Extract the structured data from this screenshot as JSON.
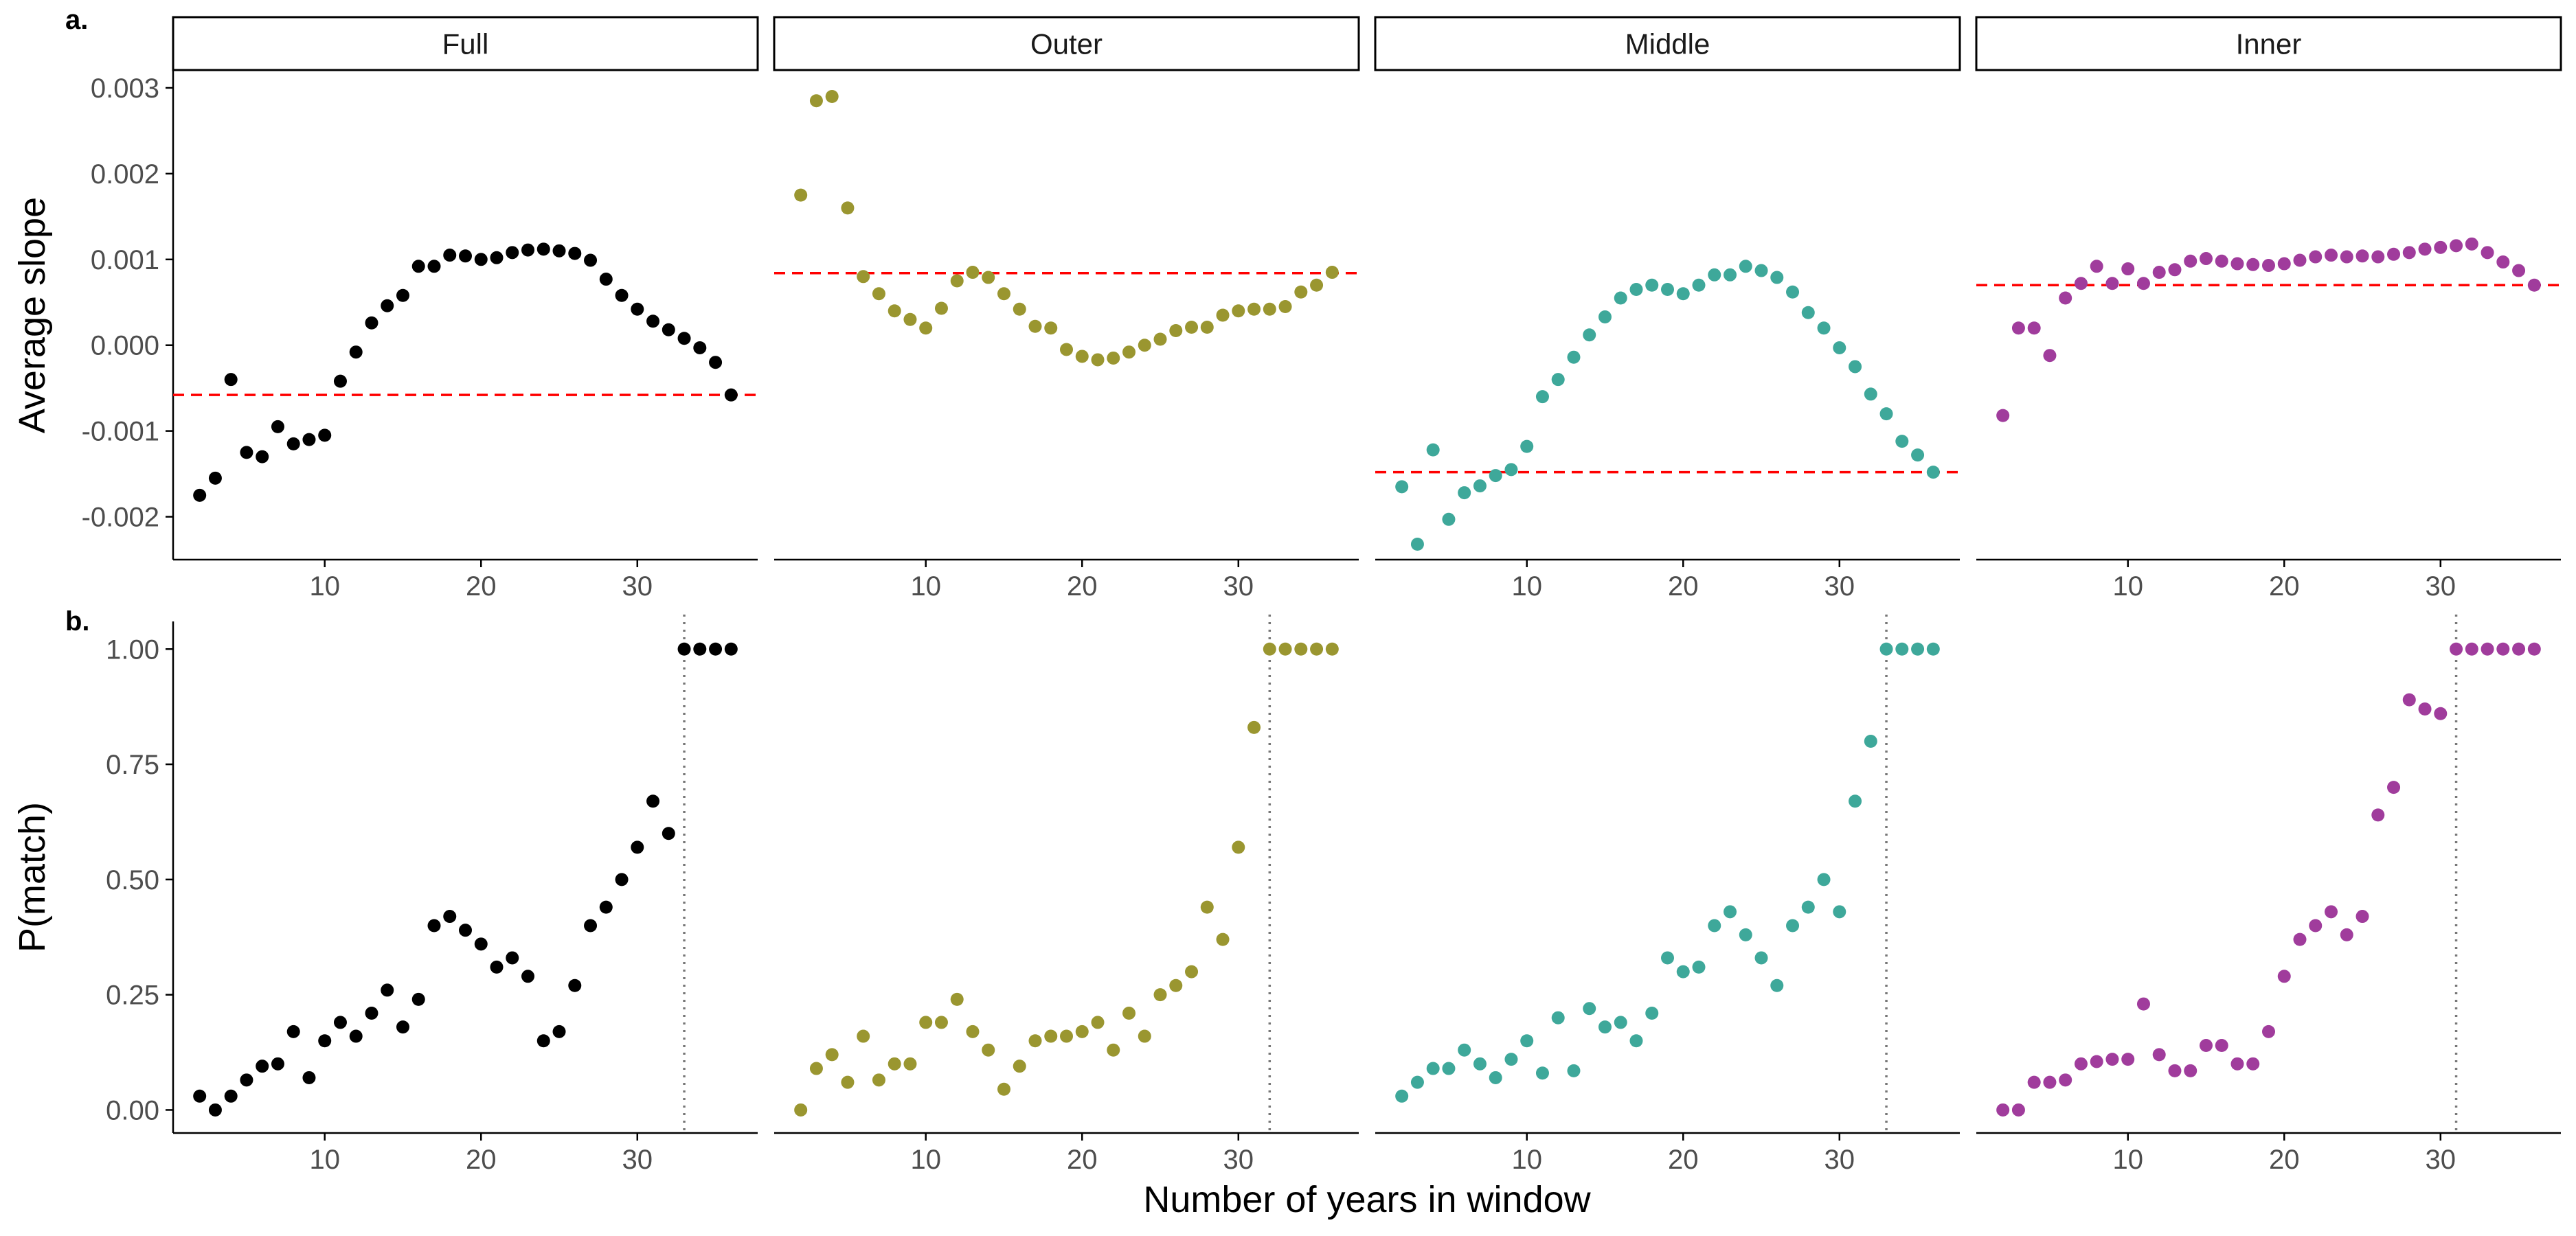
{
  "colors": {
    "Full": "#000000",
    "Outer": "#9a9630",
    "Middle": "#3ea89a",
    "Inner": "#a03c9c",
    "reference_line": "#ff0000",
    "threshold_line": "#777777",
    "axis": "#000000"
  },
  "chart_data": [
    {
      "type": "scatter",
      "panel_label": "a.",
      "ylabel": "Average slope",
      "xlabel": "",
      "ylim": [
        -0.0025,
        0.0032
      ],
      "xlim": [
        0.3,
        37.7
      ],
      "yticks": [
        -0.002,
        -0.001,
        0.0,
        0.001,
        0.002,
        0.003
      ],
      "ytick_labels": [
        "-0.002",
        "-0.001",
        "0.000",
        "0.001",
        "0.002",
        "0.003"
      ],
      "xticks": [
        10,
        20,
        30
      ],
      "xtick_labels": [
        "10",
        "20",
        "30"
      ],
      "grid": false,
      "reference_line": "horizontal, dashed red",
      "series": [
        {
          "name": "Full",
          "x": [
            2,
            3,
            4,
            5,
            6,
            7,
            8,
            9,
            10,
            11,
            12,
            13,
            14,
            15,
            16,
            17,
            18,
            19,
            20,
            21,
            22,
            23,
            24,
            25,
            26,
            27,
            28,
            29,
            30,
            31,
            32,
            33,
            34,
            35,
            36
          ],
          "y": [
            -0.00175,
            -0.00155,
            -0.0004,
            -0.00125,
            -0.0013,
            -0.00095,
            -0.00115,
            -0.0011,
            -0.00105,
            -0.00042,
            -8e-05,
            0.00026,
            0.00046,
            0.00058,
            0.00092,
            0.00092,
            0.00105,
            0.00104,
            0.001,
            0.00102,
            0.00108,
            0.00111,
            0.00112,
            0.0011,
            0.00107,
            0.00099,
            0.00077,
            0.00058,
            0.00042,
            0.00028,
            0.00018,
            8e-05,
            -3e-05,
            -0.0002,
            -0.00058
          ],
          "reference_y": -0.00058
        },
        {
          "name": "Outer",
          "x": [
            2,
            3,
            4,
            5,
            6,
            7,
            8,
            9,
            10,
            11,
            12,
            13,
            14,
            15,
            16,
            17,
            18,
            19,
            20,
            21,
            22,
            23,
            24,
            25,
            26,
            27,
            28,
            29,
            30,
            31,
            32,
            33,
            34,
            35,
            36
          ],
          "y": [
            0.00175,
            0.00285,
            0.0029,
            0.0016,
            0.0008,
            0.0006,
            0.0004,
            0.0003,
            0.0002,
            0.00043,
            0.00075,
            0.00085,
            0.00079,
            0.0006,
            0.00042,
            0.00022,
            0.0002,
            -5e-05,
            -0.00013,
            -0.00017,
            -0.00015,
            -8e-05,
            0.0,
            7e-05,
            0.00017,
            0.00021,
            0.00021,
            0.00035,
            0.0004,
            0.00042,
            0.00042,
            0.00045,
            0.00062,
            0.0007,
            0.00085
          ],
          "reference_y": 0.00084
        },
        {
          "name": "Middle",
          "x": [
            2,
            3,
            4,
            5,
            6,
            7,
            8,
            9,
            10,
            11,
            12,
            13,
            14,
            15,
            16,
            17,
            18,
            19,
            20,
            21,
            22,
            23,
            24,
            25,
            26,
            27,
            28,
            29,
            30,
            31,
            32,
            33,
            34,
            35,
            36
          ],
          "y": [
            -0.00165,
            -0.00232,
            -0.00122,
            -0.00203,
            -0.00172,
            -0.00164,
            -0.00152,
            -0.00145,
            -0.00118,
            -0.0006,
            -0.0004,
            -0.00014,
            0.00012,
            0.00033,
            0.00055,
            0.00065,
            0.0007,
            0.00065,
            0.0006,
            0.0007,
            0.00082,
            0.00082,
            0.00092,
            0.00087,
            0.00079,
            0.00062,
            0.00038,
            0.0002,
            -3e-05,
            -0.00025,
            -0.00057,
            -0.0008,
            -0.00112,
            -0.00128,
            -0.00148
          ],
          "reference_y": -0.00148
        },
        {
          "name": "Inner",
          "x": [
            2,
            3,
            4,
            5,
            6,
            7,
            8,
            9,
            10,
            11,
            12,
            13,
            14,
            15,
            16,
            17,
            18,
            19,
            20,
            21,
            22,
            23,
            24,
            25,
            26,
            27,
            28,
            29,
            30,
            31,
            32,
            33,
            34,
            35,
            36
          ],
          "y": [
            -0.00082,
            0.0002,
            0.0002,
            -0.00012,
            0.00055,
            0.00072,
            0.00092,
            0.00072,
            0.00089,
            0.00072,
            0.00085,
            0.00088,
            0.00098,
            0.00101,
            0.00098,
            0.00095,
            0.00094,
            0.00093,
            0.00095,
            0.00099,
            0.00103,
            0.00105,
            0.00103,
            0.00104,
            0.00103,
            0.00106,
            0.00108,
            0.00112,
            0.00114,
            0.00116,
            0.00118,
            0.00108,
            0.00097,
            0.00087,
            0.0007
          ],
          "reference_y": 0.0007
        }
      ]
    },
    {
      "type": "scatter",
      "panel_label": "b.",
      "ylabel": "P(match)",
      "xlabel": "Number of years in window",
      "ylim": [
        -0.05,
        1.06
      ],
      "xlim": [
        0.3,
        37.7
      ],
      "yticks": [
        0.0,
        0.25,
        0.5,
        0.75,
        1.0
      ],
      "ytick_labels": [
        "0.00",
        "0.25",
        "0.50",
        "0.75",
        "1.00"
      ],
      "xticks": [
        10,
        20,
        30
      ],
      "xtick_labels": [
        "10",
        "20",
        "30"
      ],
      "grid": false,
      "reference_line": "vertical, dotted grey",
      "series": [
        {
          "name": "Full",
          "x": [
            2,
            3,
            4,
            5,
            6,
            7,
            8,
            9,
            10,
            11,
            12,
            13,
            14,
            15,
            16,
            17,
            18,
            19,
            20,
            21,
            22,
            23,
            24,
            25,
            26,
            27,
            28,
            29,
            30,
            31,
            32,
            33,
            34,
            35,
            36
          ],
          "y": [
            0.03,
            0.0,
            0.03,
            0.065,
            0.095,
            0.1,
            0.17,
            0.07,
            0.15,
            0.19,
            0.16,
            0.21,
            0.26,
            0.18,
            0.24,
            0.4,
            0.42,
            0.39,
            0.36,
            0.31,
            0.33,
            0.29,
            0.15,
            0.17,
            0.27,
            0.4,
            0.44,
            0.5,
            0.57,
            0.67,
            0.6,
            1.0,
            1.0,
            1.0,
            1.0
          ],
          "threshold_x": 33
        },
        {
          "name": "Outer",
          "x": [
            2,
            3,
            4,
            5,
            6,
            7,
            8,
            9,
            10,
            11,
            12,
            13,
            14,
            15,
            16,
            17,
            18,
            19,
            20,
            21,
            22,
            23,
            24,
            25,
            26,
            27,
            28,
            29,
            30,
            31,
            32,
            33,
            34,
            35,
            36
          ],
          "y": [
            0.0,
            0.09,
            0.12,
            0.06,
            0.16,
            0.065,
            0.1,
            0.1,
            0.19,
            0.19,
            0.24,
            0.17,
            0.13,
            0.045,
            0.095,
            0.15,
            0.16,
            0.16,
            0.17,
            0.19,
            0.13,
            0.21,
            0.16,
            0.25,
            0.27,
            0.3,
            0.44,
            0.37,
            0.57,
            0.83,
            1.0,
            1.0,
            1.0,
            1.0,
            1.0
          ],
          "threshold_x": 32
        },
        {
          "name": "Middle",
          "x": [
            2,
            3,
            4,
            5,
            6,
            7,
            8,
            9,
            10,
            11,
            12,
            13,
            14,
            15,
            16,
            17,
            18,
            19,
            20,
            21,
            22,
            23,
            24,
            25,
            26,
            27,
            28,
            29,
            30,
            31,
            32,
            33,
            34,
            35,
            36
          ],
          "y": [
            0.03,
            0.06,
            0.09,
            0.09,
            0.13,
            0.1,
            0.07,
            0.11,
            0.15,
            0.08,
            0.2,
            0.085,
            0.22,
            0.18,
            0.19,
            0.15,
            0.21,
            0.33,
            0.3,
            0.31,
            0.4,
            0.43,
            0.38,
            0.33,
            0.27,
            0.4,
            0.44,
            0.5,
            0.43,
            0.67,
            0.8,
            1.0,
            1.0,
            1.0,
            1.0
          ],
          "threshold_x": 33
        },
        {
          "name": "Inner",
          "x": [
            2,
            3,
            4,
            5,
            6,
            7,
            8,
            9,
            10,
            11,
            12,
            13,
            14,
            15,
            16,
            17,
            18,
            19,
            20,
            21,
            22,
            23,
            24,
            25,
            26,
            27,
            28,
            29,
            30,
            31,
            32,
            33,
            34,
            35,
            36
          ],
          "y": [
            0.0,
            0.0,
            0.06,
            0.06,
            0.065,
            0.1,
            0.105,
            0.11,
            0.11,
            0.23,
            0.12,
            0.085,
            0.085,
            0.14,
            0.14,
            0.1,
            0.1,
            0.17,
            0.29,
            0.37,
            0.4,
            0.43,
            0.38,
            0.42,
            0.64,
            0.7,
            0.89,
            0.87,
            0.86,
            1.0,
            1.0,
            1.0,
            1.0,
            1.0,
            1.0
          ],
          "threshold_x": 31
        }
      ]
    }
  ]
}
